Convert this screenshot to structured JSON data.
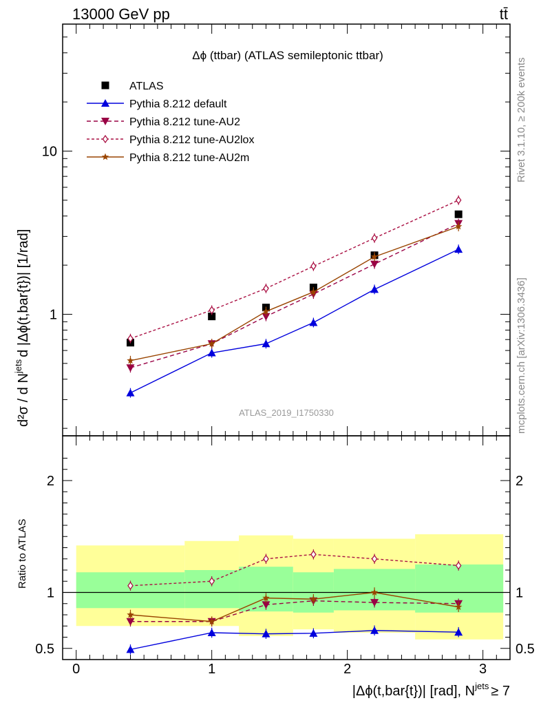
{
  "header": {
    "energy_label": "13000 GeV pp",
    "process_label": "tt̄",
    "rivet_label": "Rivet 3.1.10, ≥ 200k events",
    "mcplots_label": "mcplots.cern.ch [arXiv:1306.3436]",
    "analysis_label": "ATLAS_2019_I1750330"
  },
  "chart_data": [
    {
      "type": "scatter",
      "title": "Δϕ (ttbar) (ATLAS semileptonic ttbar)",
      "ylabel_main": "d²σ / d N",
      "ylabel_sup": "jets",
      "ylabel_tail": "d |Δϕ(t,bar{t})| [1/rad]",
      "xlabel_main": "|Δϕ(t,bar{t})| [rad], N",
      "xlabel_sup": "jets",
      "xlabel_tail": "≥ 7",
      "log_y": true,
      "xlim": [
        -0.1,
        3.2
      ],
      "ylim": [
        0.18,
        60
      ],
      "y_ticks": [
        {
          "v": 1,
          "label": "1"
        },
        {
          "v": 10,
          "label": "10"
        }
      ],
      "x_ticks": [
        0,
        1,
        2,
        3
      ],
      "x": [
        0.4,
        1.0,
        1.4,
        1.75,
        2.2,
        2.82
      ],
      "legend": [
        {
          "name": "ATLAS",
          "color": "#000000",
          "marker": "square"
        },
        {
          "name": "Pythia 8.212 default",
          "color": "#0000dd",
          "marker": "triangle-up"
        },
        {
          "name": "Pythia 8.212 tune-AU2",
          "color": "#990044",
          "marker": "triangle-down"
        },
        {
          "name": "Pythia 8.212 tune-AU2lox",
          "color": "#aa1144",
          "marker": "diamond-open"
        },
        {
          "name": "Pythia 8.212 tune-AU2m",
          "color": "#994400",
          "marker": "star"
        }
      ],
      "series": [
        {
          "values": [
            0.67,
            0.97,
            1.1,
            1.46,
            2.3,
            4.1
          ]
        },
        {
          "values": [
            0.33,
            0.58,
            0.66,
            0.89,
            1.42,
            2.5
          ]
        },
        {
          "values": [
            0.47,
            0.66,
            0.97,
            1.33,
            2.03,
            3.6
          ]
        },
        {
          "values": [
            0.71,
            1.06,
            1.44,
            1.97,
            2.93,
            5.0
          ]
        },
        {
          "values": [
            0.52,
            0.66,
            1.04,
            1.37,
            2.25,
            3.45
          ]
        }
      ]
    },
    {
      "type": "scatter",
      "ylabel": "Ratio to ATLAS",
      "xlim": [
        -0.1,
        3.2
      ],
      "ylim": [
        0.4,
        2.4
      ],
      "y_ticks": [
        {
          "v": 0.5,
          "label": "0.5"
        },
        {
          "v": 1,
          "label": "1"
        },
        {
          "v": 2,
          "label": "2"
        }
      ],
      "x": [
        0.4,
        1.0,
        1.4,
        1.75,
        2.2,
        2.82
      ],
      "bins": [
        [
          0.0,
          0.8
        ],
        [
          0.8,
          1.2
        ],
        [
          1.2,
          1.6
        ],
        [
          1.6,
          1.9
        ],
        [
          1.9,
          2.5
        ],
        [
          2.5,
          3.15
        ]
      ],
      "band_yellow": [
        [
          0.7,
          1.42
        ],
        [
          0.7,
          1.46
        ],
        [
          0.61,
          1.51
        ],
        [
          0.67,
          1.48
        ],
        [
          0.64,
          1.48
        ],
        [
          0.58,
          1.52
        ]
      ],
      "band_green": [
        [
          0.86,
          1.18
        ],
        [
          0.86,
          1.2
        ],
        [
          0.83,
          1.23
        ],
        [
          0.82,
          1.18
        ],
        [
          0.84,
          1.21
        ],
        [
          0.82,
          1.25
        ]
      ],
      "series": [
        {
          "values": [
            0.49,
            0.64,
            0.63,
            0.635,
            0.66,
            0.645
          ]
        },
        {
          "values": [
            0.74,
            0.74,
            0.89,
            0.925,
            0.91,
            0.9
          ]
        },
        {
          "values": [
            1.06,
            1.1,
            1.3,
            1.34,
            1.3,
            1.24
          ]
        },
        {
          "values": [
            0.8,
            0.74,
            0.95,
            0.94,
            1.0,
            0.87
          ]
        }
      ]
    }
  ]
}
